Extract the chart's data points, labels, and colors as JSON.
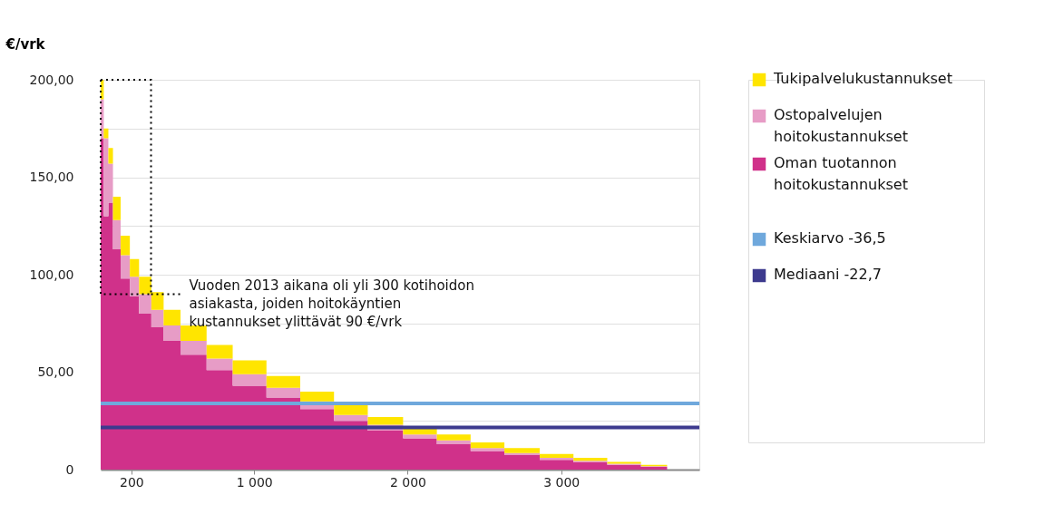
{
  "chart_data": {
    "type": "area",
    "stacked": true,
    "ylabel": "€/vrk",
    "x": [
      0,
      20,
      50,
      80,
      130,
      190,
      250,
      330,
      410,
      520,
      690,
      860,
      1080,
      1300,
      1520,
      1740,
      1970,
      2190,
      2410,
      2630,
      2860,
      3080,
      3300,
      3520,
      3690
    ],
    "series": [
      {
        "name": "Oman tuotannon hoitokustannukset",
        "color": "#d0318a",
        "values": [
          170,
          130,
          137,
          113,
          98,
          89,
          80,
          73,
          66,
          59,
          51,
          43,
          37,
          31,
          25,
          20,
          16,
          13,
          9.5,
          7.5,
          5,
          3.7,
          2.5,
          1.4,
          0.2
        ]
      },
      {
        "name": "Ostopalvelujen hoitokustannukset",
        "color": "#e79cc6",
        "values": [
          20,
          40,
          20,
          15,
          12,
          10,
          10,
          9,
          8,
          7,
          6,
          6,
          5,
          4,
          3,
          3,
          2,
          2,
          1.5,
          1,
          1,
          0.8,
          0.5,
          0.3,
          0.1
        ]
      },
      {
        "name": "Tukipalvelukustannukset",
        "color": "#ffe500",
        "values": [
          10,
          5,
          8,
          12,
          10,
          9,
          9,
          9,
          8,
          8,
          7,
          7,
          6,
          5,
          5,
          4,
          4,
          3,
          3,
          2.5,
          2,
          1.5,
          1,
          0.8,
          0.2
        ]
      }
    ],
    "xlim": [
      0,
      3900
    ],
    "xticks": [
      200,
      {
        "value": 1000,
        "label": "1 000"
      },
      {
        "value": 2000,
        "label": "2 000"
      },
      {
        "value": 3000,
        "label": "3 000"
      }
    ],
    "ylim": [
      0,
      200
    ],
    "yticks": [
      {
        "value": 0,
        "label": "0"
      },
      {
        "value": 25,
        "label": null
      },
      {
        "value": 50,
        "label": "50,00"
      },
      {
        "value": 75,
        "label": null
      },
      {
        "value": 100,
        "label": "100,00"
      },
      {
        "value": 125,
        "label": null
      },
      {
        "value": 150,
        "label": "150,00"
      },
      {
        "value": 175,
        "label": null
      },
      {
        "value": 200,
        "label": "200,00"
      }
    ],
    "grid": "y",
    "legend": "right",
    "ref_lines": [
      {
        "axis": "y",
        "value": 34,
        "label": "Keskiarvo -36,5",
        "color": "#6fa8dc"
      },
      {
        "axis": "y",
        "value": 21.6,
        "label": "Mediaani -22,7",
        "color": "#3d3a8e"
      }
    ],
    "annotations": [
      {
        "text": "Vuoden 2013 aikana oli yli 300 kotihoidon asiakasta, joiden hoitokäyntien kustannukset ylittävät 90 €/vrk",
        "x": 328,
        "y": 90
      }
    ]
  }
}
